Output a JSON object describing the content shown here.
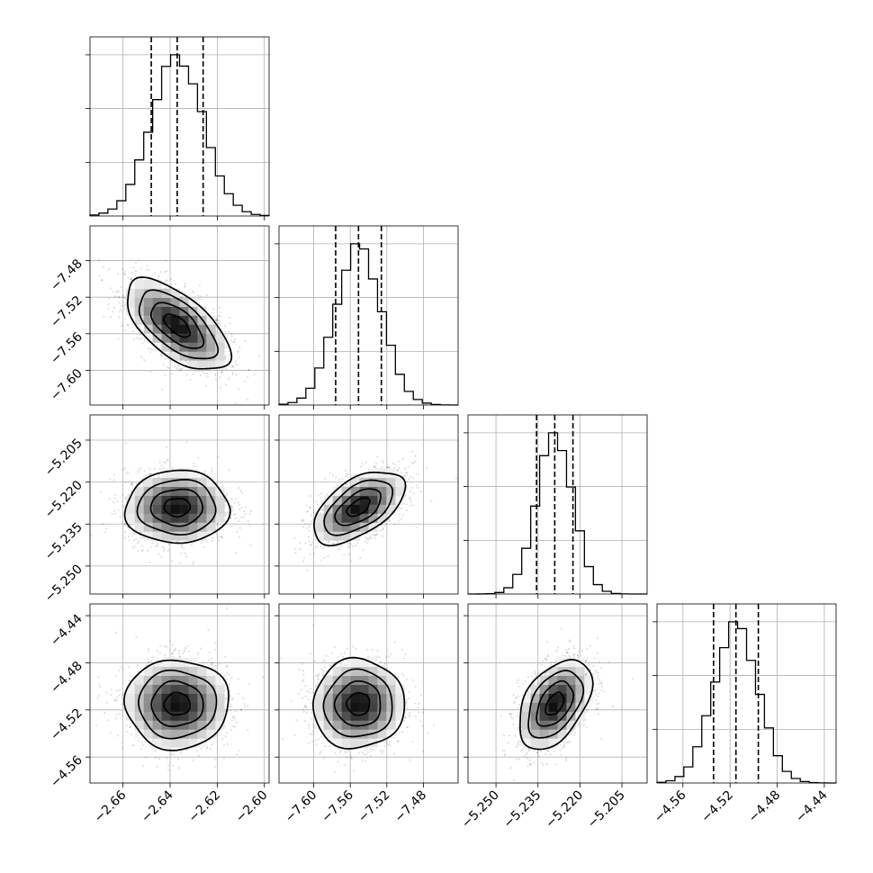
{
  "chart_data": {
    "type": "corner",
    "n_params": 4,
    "parameters": [
      {
        "mean": -2.637,
        "sigma": 0.011,
        "range": [
          -2.674,
          -2.598
        ],
        "ticks": [
          -2.66,
          -2.64,
          -2.62,
          -2.6
        ],
        "tick_labels": [
          "−2.66",
          "−2.64",
          "−2.62",
          "−2.60"
        ],
        "quantiles": [
          -2.648,
          -2.637,
          -2.626
        ],
        "hist_bins": [
          -2.674,
          -2.598
        ]
      },
      {
        "mean": -7.551,
        "sigma": 0.025,
        "range": [
          -7.638,
          -7.442
        ],
        "ticks": [
          -7.6,
          -7.56,
          -7.52,
          -7.48
        ],
        "tick_labels": [
          "−7.60",
          "−7.56",
          "−7.52",
          "−7.48"
        ],
        "quantiles": [
          -7.576,
          -7.551,
          -7.526
        ],
        "hist_bins": [
          -7.638,
          -7.442
        ]
      },
      {
        "mean": -5.229,
        "sigma": 0.0065,
        "range": [
          -5.26,
          -5.196
        ],
        "ticks": [
          -5.25,
          -5.235,
          -5.22,
          -5.205
        ],
        "tick_labels": [
          "−5.250",
          "−5.235",
          "−5.220",
          "−5.205"
        ],
        "quantiles": [
          -5.2355,
          -5.229,
          -5.2225
        ],
        "hist_bins": [
          -5.26,
          -5.196
        ]
      },
      {
        "mean": -4.515,
        "sigma": 0.019,
        "range": [
          -4.582,
          -4.43
        ],
        "ticks": [
          -4.56,
          -4.52,
          -4.48,
          -4.44
        ],
        "tick_labels": [
          "−4.56",
          "−4.52",
          "−4.48",
          "−4.44"
        ],
        "quantiles": [
          -4.534,
          -4.515,
          -4.496
        ],
        "hist_bins": [
          -4.582,
          -4.43
        ]
      }
    ],
    "correlations": {
      "1-0": -0.62,
      "2-0": 0.02,
      "2-1": 0.55,
      "3-0": 0.0,
      "3-1": 0.02,
      "3-2": 0.45
    },
    "contour_levels": [
      0.118,
      0.393,
      0.675,
      0.864
    ],
    "hist_bins_count": 20,
    "grid": true,
    "legend": "none"
  }
}
